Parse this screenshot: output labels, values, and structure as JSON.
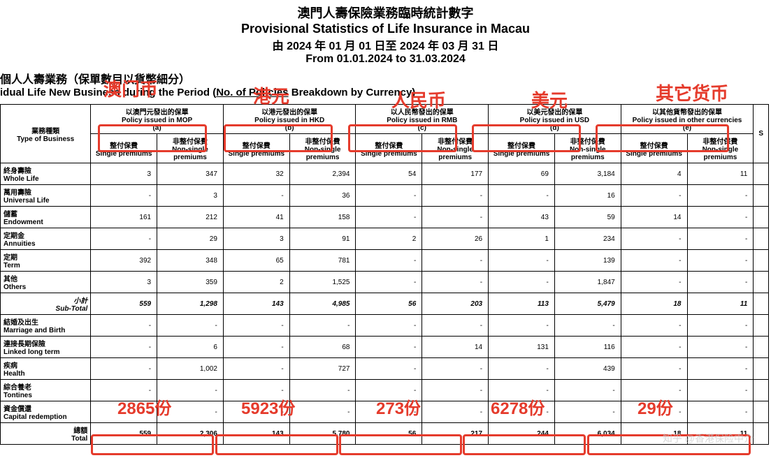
{
  "title": {
    "zh1": "澳門人壽保險業務臨時統計數字",
    "en1": "Provisional Statistics of Life Insurance in Macau",
    "zh2": "由 2024 年 01 月 01 日至 2024 年 03 月 31 日",
    "en2": "From 01.01.2024 to 31.03.2024"
  },
  "subhead": {
    "zh": "個人人壽業務（保單數目以貨幣細分）",
    "en_pre": "idual Life New Business during the Period (",
    "en_u": "No. of Policies",
    "en_post": " Breakdown by Currency)"
  },
  "colheaders": {
    "type_zh": "業務種類",
    "type_en": "Type of Business",
    "mop_zh": "以澳門元發出的保單",
    "mop_en": "Policy issued in MOP",
    "mop_tag": "(a)",
    "hkd_zh": "以港元發出的保單",
    "hkd_en": "Policy issued in HKD",
    "hkd_tag": "(b)",
    "rmb_zh": "以人民幣發出的保單",
    "rmb_en": "Policy issued in RMB",
    "rmb_tag": "(c)",
    "usd_zh": "以美元發出的保單",
    "usd_en": "Policy issued in USD",
    "usd_tag": "(d)",
    "oth_zh": "以其他貨幣發出的保單",
    "oth_en": "Policy issued in other currencies",
    "oth_tag": "(e)",
    "sp_zh": "整付保費",
    "sp_en": "Single premiums",
    "np_zh": "非整付保費",
    "np_en": "Non-single premiums"
  },
  "rows": [
    {
      "zh": "終身壽險",
      "en": "Whole Life",
      "v": [
        "3",
        "347",
        "32",
        "2,394",
        "54",
        "177",
        "69",
        "3,184",
        "4",
        "11"
      ]
    },
    {
      "zh": "萬用壽險",
      "en": "Universal Life",
      "v": [
        "-",
        "3",
        "-",
        "36",
        "-",
        "-",
        "-",
        "16",
        "-",
        "-"
      ]
    },
    {
      "zh": "儲蓄",
      "en": "Endowment",
      "v": [
        "161",
        "212",
        "41",
        "158",
        "-",
        "-",
        "43",
        "59",
        "14",
        "-"
      ]
    },
    {
      "zh": "定期金",
      "en": "Annuities",
      "v": [
        "-",
        "29",
        "3",
        "91",
        "2",
        "26",
        "1",
        "234",
        "-",
        "-"
      ]
    },
    {
      "zh": "定期",
      "en": "Term",
      "v": [
        "392",
        "348",
        "65",
        "781",
        "-",
        "-",
        "-",
        "139",
        "-",
        "-"
      ]
    },
    {
      "zh": "其他",
      "en": "Others",
      "v": [
        "3",
        "359",
        "2",
        "1,525",
        "-",
        "-",
        "-",
        "1,847",
        "-",
        "-"
      ]
    }
  ],
  "subtotal": {
    "zh": "小計",
    "en": "Sub-Total",
    "v": [
      "559",
      "1,298",
      "143",
      "4,985",
      "56",
      "203",
      "113",
      "5,479",
      "18",
      "11"
    ]
  },
  "rows2": [
    {
      "zh": "結婚及出生",
      "en": "Marriage and Birth",
      "v": [
        "-",
        "-",
        "-",
        "-",
        "-",
        "-",
        "-",
        "-",
        "-",
        "-"
      ]
    },
    {
      "zh": "連接長期保險",
      "en": "Linked long term",
      "v": [
        "-",
        "6",
        "-",
        "68",
        "-",
        "14",
        "131",
        "116",
        "-",
        "-"
      ]
    },
    {
      "zh": "疾病",
      "en": "Health",
      "v": [
        "-",
        "1,002",
        "-",
        "727",
        "-",
        "-",
        "-",
        "439",
        "-",
        "-"
      ]
    },
    {
      "zh": "綜合養老",
      "en": "Tontines",
      "v": [
        "-",
        "-",
        "-",
        "-",
        "-",
        "-",
        "-",
        "-",
        "-",
        "-"
      ]
    },
    {
      "zh": "資金償還",
      "en": "Capital redemption",
      "v": [
        "-",
        "-",
        "-",
        "-",
        "-",
        "-",
        "-",
        "-",
        "-",
        "-"
      ]
    }
  ],
  "total": {
    "zh": "總額",
    "en": "Total",
    "v": [
      "559",
      "2,306",
      "143",
      "5,780",
      "56",
      "217",
      "244",
      "6,034",
      "18",
      "11"
    ]
  },
  "annotations": {
    "mop": "澳门币",
    "hkd": "港元",
    "rmb": "人民币",
    "usd": "美元",
    "oth": "其它货币",
    "s1": "2865份",
    "s2": "5923份",
    "s3": "273份",
    "s4": "6278份",
    "s5": "29份"
  },
  "watermark": "知乎 @香港保险中介",
  "style": {
    "red": "#e53b2c",
    "text": "#000000"
  }
}
